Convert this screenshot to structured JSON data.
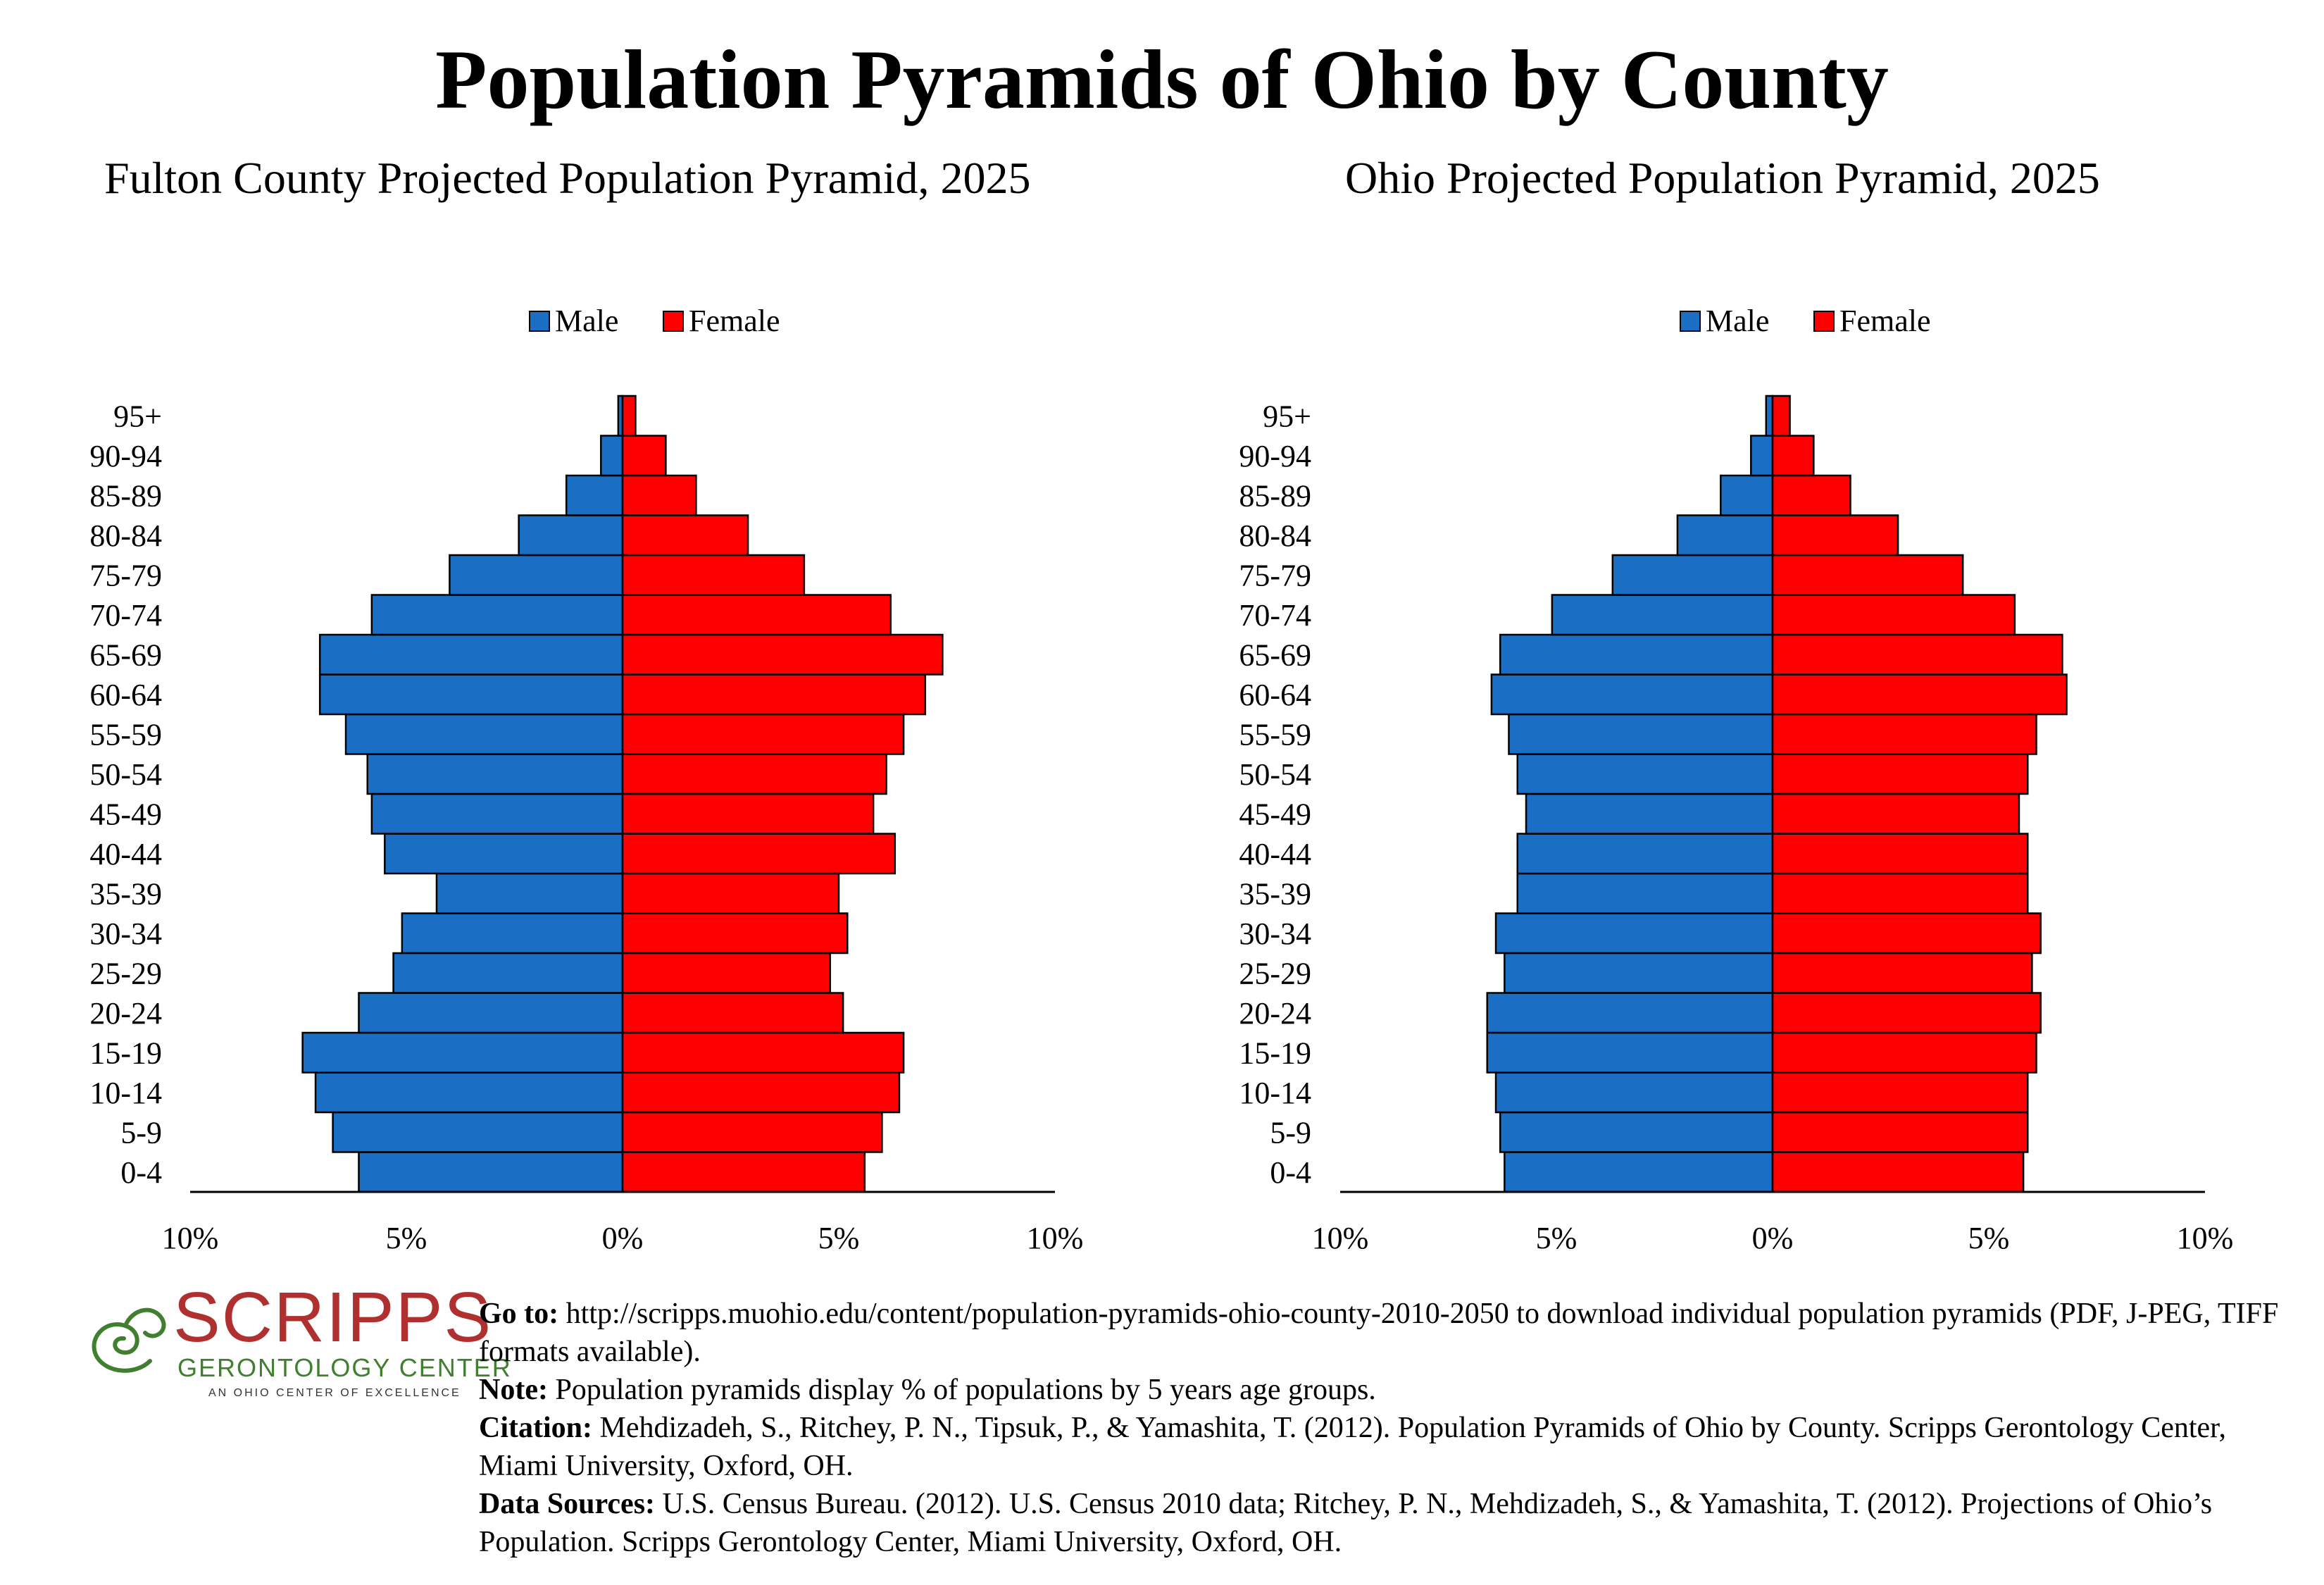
{
  "main_title": "Population Pyramids of Ohio by County",
  "colors": {
    "male": "#1a6ec4",
    "female": "#ff0000",
    "logo_red": "#b03030",
    "logo_green": "#3f7f2f"
  },
  "chart_data": [
    {
      "type": "bar",
      "orientation": "horizontal-pyramid",
      "title": "Fulton County Projected Population Pyramid, 2025",
      "categories": [
        "0-4",
        "5-9",
        "10-14",
        "15-19",
        "20-24",
        "25-29",
        "30-34",
        "35-39",
        "40-44",
        "45-49",
        "50-54",
        "55-59",
        "60-64",
        "65-69",
        "70-74",
        "75-79",
        "80-84",
        "85-89",
        "90-94",
        "95+"
      ],
      "series": [
        {
          "name": "Male",
          "values": [
            6.1,
            6.7,
            7.1,
            7.4,
            6.1,
            5.3,
            5.1,
            4.3,
            5.5,
            5.8,
            5.9,
            6.4,
            7.0,
            7.0,
            5.8,
            4.0,
            2.4,
            1.3,
            0.5,
            0.1
          ]
        },
        {
          "name": "Female",
          "values": [
            5.6,
            6.0,
            6.4,
            6.5,
            5.1,
            4.8,
            5.2,
            5.0,
            6.3,
            5.8,
            6.1,
            6.5,
            7.0,
            7.4,
            6.2,
            4.2,
            2.9,
            1.7,
            1.0,
            0.3
          ]
        }
      ],
      "xlim": [
        -10,
        10
      ],
      "xticks": [
        "10%",
        "5%",
        "0%",
        "5%",
        "10%"
      ],
      "legend": "top-center"
    },
    {
      "type": "bar",
      "orientation": "horizontal-pyramid",
      "title": "Ohio Projected Population Pyramid, 2025",
      "categories": [
        "0-4",
        "5-9",
        "10-14",
        "15-19",
        "20-24",
        "25-29",
        "30-34",
        "35-39",
        "40-44",
        "45-49",
        "50-54",
        "55-59",
        "60-64",
        "65-69",
        "70-74",
        "75-79",
        "80-84",
        "85-89",
        "90-94",
        "95+"
      ],
      "series": [
        {
          "name": "Male",
          "values": [
            6.2,
            6.3,
            6.4,
            6.6,
            6.6,
            6.2,
            6.4,
            5.9,
            5.9,
            5.7,
            5.9,
            6.1,
            6.5,
            6.3,
            5.1,
            3.7,
            2.2,
            1.2,
            0.5,
            0.15
          ]
        },
        {
          "name": "Female",
          "values": [
            5.8,
            5.9,
            5.9,
            6.1,
            6.2,
            6.0,
            6.2,
            5.9,
            5.9,
            5.7,
            5.9,
            6.1,
            6.8,
            6.7,
            5.6,
            4.4,
            2.9,
            1.8,
            0.95,
            0.4
          ]
        }
      ],
      "xlim": [
        -10,
        10
      ],
      "xticks": [
        "10%",
        "5%",
        "0%",
        "5%",
        "10%"
      ],
      "legend": "top-center"
    }
  ],
  "logo": {
    "name": "SCRIPPS",
    "subtitle": "GERONTOLOGY CENTER",
    "tagline": "AN OHIO CENTER OF EXCELLENCE"
  },
  "notes": [
    {
      "label": "Go to:",
      "text": " http://scripps.muohio.edu/content/population-pyramids-ohio-county-2010-2050 to download individual population pyramids (PDF, J-PEG, TIFF formats available)."
    },
    {
      "label": "Note:",
      "text": " Population pyramids display % of populations by 5 years age groups."
    },
    {
      "label": "Citation:",
      "text": " Mehdizadeh, S., Ritchey, P. N., Tipsuk, P., & Yamashita, T. (2012). Population Pyramids of Ohio by County. Scripps Gerontology Center, Miami University, Oxford, OH."
    },
    {
      "label": "Data Sources:",
      "text": " U.S. Census Bureau. (2012). U.S. Census 2010 data; Ritchey, P. N., Mehdizadeh, S., & Yamashita, T. (2012). Projections of Ohio’s Population. Scripps Gerontology Center, Miami University, Oxford, OH."
    }
  ]
}
